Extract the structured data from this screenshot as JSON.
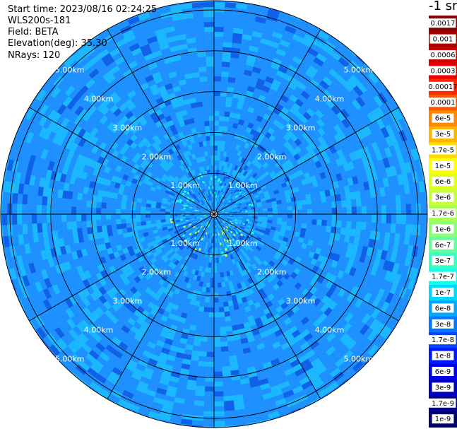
{
  "header": {
    "start_time": "Start time: 2023/08/16 02:24:25",
    "instrument": "WLS200s-181",
    "field": "Field: BETA",
    "elevation": "Elevation(deg): 35.30",
    "nrays": "NRays: 120"
  },
  "colorbar": {
    "unit_label": "-1 sr",
    "labels": [
      "0.0017",
      "0.001",
      "0.0006",
      "0.0003",
      "0.00017",
      "0.0001",
      "6e-5",
      "3e-5",
      "1.7e-5",
      "1e-5",
      "6e-6",
      "3e-6",
      "1.7e-6",
      "1e-6",
      "6e-7",
      "3e-7",
      "1.7e-7",
      "1e-7",
      "6e-8",
      "3e-8",
      "1.7e-8",
      "1e-8",
      "6e-9",
      "3e-9",
      "1.7e-9",
      "1e-9"
    ],
    "colors": [
      "#8b0000",
      "#aa0000",
      "#cc0000",
      "#ee0000",
      "#ff2600",
      "#ff5a00",
      "#ff8a00",
      "#ffb400",
      "#ffdc00",
      "#ffff00",
      "#e0ff1c",
      "#c4ff3a",
      "#a8ff58",
      "#8cff76",
      "#66ff9c",
      "#3cffc4",
      "#14fff0",
      "#00d8ff",
      "#00a8ff",
      "#0078ff",
      "#0048ff",
      "#0018ff",
      "#0000e8",
      "#0000c0",
      "#000098",
      "#000070"
    ]
  },
  "chart_data": {
    "type": "polar_ppi",
    "field": "BETA",
    "elevation_deg": 35.3,
    "nrays": 120,
    "range_rings_km": [
      1,
      2,
      3,
      4,
      5
    ],
    "ring_labels": [
      "1.00km",
      "2.00km",
      "3.00km",
      "4.00km",
      "5.00km"
    ],
    "azimuth_spokes_deg": [
      0,
      30,
      60,
      90,
      120,
      150,
      180,
      210,
      240,
      270,
      300,
      330
    ],
    "max_range_km": 5.6,
    "colors": {
      "background_field": "#1e90ff",
      "speckle_light": "#1cb8ff",
      "speckle_dark": "#1060e8",
      "near_return_high": "#c8ff50",
      "near_return_mid": "#22ffe6"
    }
  }
}
